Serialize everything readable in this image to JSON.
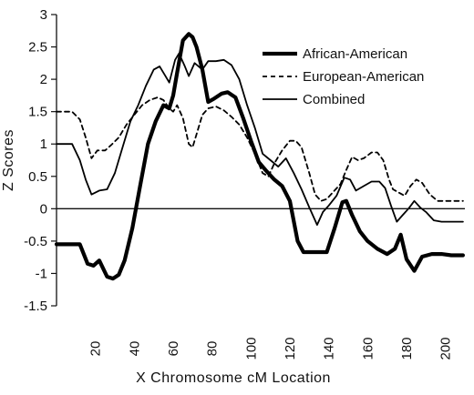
{
  "chart_data": {
    "type": "line",
    "title": "",
    "xlabel": "X Chromosome cM Location",
    "ylabel": "Z Scores",
    "xlim": [
      0,
      210
    ],
    "ylim": [
      -1.5,
      3
    ],
    "xticks": [
      20,
      40,
      60,
      80,
      100,
      120,
      140,
      160,
      180,
      200
    ],
    "yticks": [
      -1.5,
      -1,
      -0.5,
      0,
      0.5,
      1,
      1.5,
      2,
      2.5,
      3
    ],
    "legend_position": "top-right",
    "grid": false,
    "series": [
      {
        "name": "African-American",
        "style": "thick-solid",
        "color": "#000000",
        "points": [
          [
            0,
            -0.55
          ],
          [
            8,
            -0.55
          ],
          [
            12,
            -0.55
          ],
          [
            16,
            -0.85
          ],
          [
            19,
            -0.88
          ],
          [
            22,
            -0.8
          ],
          [
            26,
            -1.05
          ],
          [
            29,
            -1.08
          ],
          [
            32,
            -1.02
          ],
          [
            35,
            -0.8
          ],
          [
            39,
            -0.3
          ],
          [
            43,
            0.35
          ],
          [
            47,
            1.0
          ],
          [
            51,
            1.35
          ],
          [
            55,
            1.6
          ],
          [
            58,
            1.55
          ],
          [
            60,
            1.75
          ],
          [
            62,
            2.1
          ],
          [
            65,
            2.6
          ],
          [
            68,
            2.7
          ],
          [
            70,
            2.65
          ],
          [
            72,
            2.5
          ],
          [
            75,
            2.15
          ],
          [
            78,
            1.65
          ],
          [
            81,
            1.7
          ],
          [
            85,
            1.78
          ],
          [
            88,
            1.8
          ],
          [
            92,
            1.72
          ],
          [
            96,
            1.4
          ],
          [
            100,
            1.05
          ],
          [
            104,
            0.72
          ],
          [
            108,
            0.58
          ],
          [
            112,
            0.45
          ],
          [
            116,
            0.35
          ],
          [
            120,
            0.12
          ],
          [
            124,
            -0.5
          ],
          [
            127,
            -0.67
          ],
          [
            131,
            -0.67
          ],
          [
            135,
            -0.67
          ],
          [
            139,
            -0.67
          ],
          [
            143,
            -0.3
          ],
          [
            147,
            0.1
          ],
          [
            149,
            0.12
          ],
          [
            152,
            -0.1
          ],
          [
            156,
            -0.35
          ],
          [
            160,
            -0.5
          ],
          [
            165,
            -0.62
          ],
          [
            170,
            -0.7
          ],
          [
            174,
            -0.62
          ],
          [
            177,
            -0.4
          ],
          [
            180,
            -0.78
          ],
          [
            184,
            -0.96
          ],
          [
            188,
            -0.74
          ],
          [
            193,
            -0.7
          ],
          [
            198,
            -0.7
          ],
          [
            203,
            -0.72
          ],
          [
            209,
            -0.72
          ]
        ]
      },
      {
        "name": "European-American",
        "style": "dashed",
        "color": "#000000",
        "points": [
          [
            0,
            1.5
          ],
          [
            8,
            1.5
          ],
          [
            12,
            1.38
          ],
          [
            15,
            1.1
          ],
          [
            18,
            0.78
          ],
          [
            21,
            0.9
          ],
          [
            25,
            0.9
          ],
          [
            28,
            0.98
          ],
          [
            32,
            1.1
          ],
          [
            36,
            1.3
          ],
          [
            40,
            1.45
          ],
          [
            44,
            1.6
          ],
          [
            48,
            1.68
          ],
          [
            52,
            1.72
          ],
          [
            55,
            1.68
          ],
          [
            58,
            1.55
          ],
          [
            60,
            1.5
          ],
          [
            62,
            1.6
          ],
          [
            65,
            1.4
          ],
          [
            68,
            1.0
          ],
          [
            70,
            0.95
          ],
          [
            72,
            1.15
          ],
          [
            75,
            1.45
          ],
          [
            78,
            1.55
          ],
          [
            82,
            1.58
          ],
          [
            86,
            1.52
          ],
          [
            90,
            1.42
          ],
          [
            94,
            1.3
          ],
          [
            98,
            1.1
          ],
          [
            102,
            0.85
          ],
          [
            106,
            0.55
          ],
          [
            109,
            0.5
          ],
          [
            112,
            0.7
          ],
          [
            116,
            0.9
          ],
          [
            120,
            1.05
          ],
          [
            123,
            1.05
          ],
          [
            126,
            0.95
          ],
          [
            130,
            0.55
          ],
          [
            133,
            0.22
          ],
          [
            136,
            0.12
          ],
          [
            139,
            0.15
          ],
          [
            142,
            0.25
          ],
          [
            146,
            0.38
          ],
          [
            149,
            0.6
          ],
          [
            152,
            0.8
          ],
          [
            155,
            0.75
          ],
          [
            158,
            0.78
          ],
          [
            162,
            0.87
          ],
          [
            165,
            0.87
          ],
          [
            168,
            0.75
          ],
          [
            171,
            0.45
          ],
          [
            173,
            0.3
          ],
          [
            176,
            0.25
          ],
          [
            179,
            0.2
          ],
          [
            182,
            0.35
          ],
          [
            185,
            0.45
          ],
          [
            188,
            0.4
          ],
          [
            192,
            0.22
          ],
          [
            196,
            0.12
          ],
          [
            200,
            0.12
          ],
          [
            205,
            0.12
          ],
          [
            209,
            0.12
          ]
        ]
      },
      {
        "name": "Combined",
        "style": "thin-solid",
        "color": "#000000",
        "points": [
          [
            0,
            1.0
          ],
          [
            8,
            1.0
          ],
          [
            12,
            0.75
          ],
          [
            15,
            0.45
          ],
          [
            18,
            0.22
          ],
          [
            22,
            0.28
          ],
          [
            26,
            0.3
          ],
          [
            30,
            0.55
          ],
          [
            34,
            0.95
          ],
          [
            38,
            1.35
          ],
          [
            42,
            1.6
          ],
          [
            46,
            1.9
          ],
          [
            50,
            2.15
          ],
          [
            53,
            2.2
          ],
          [
            56,
            2.05
          ],
          [
            58,
            1.95
          ],
          [
            61,
            2.3
          ],
          [
            63,
            2.4
          ],
          [
            66,
            2.2
          ],
          [
            68,
            2.05
          ],
          [
            71,
            2.25
          ],
          [
            75,
            2.15
          ],
          [
            78,
            2.28
          ],
          [
            82,
            2.28
          ],
          [
            86,
            2.3
          ],
          [
            90,
            2.22
          ],
          [
            94,
            2.0
          ],
          [
            98,
            1.6
          ],
          [
            102,
            1.25
          ],
          [
            106,
            0.85
          ],
          [
            110,
            0.75
          ],
          [
            114,
            0.65
          ],
          [
            118,
            0.78
          ],
          [
            122,
            0.55
          ],
          [
            126,
            0.3
          ],
          [
            130,
            0.02
          ],
          [
            134,
            -0.25
          ],
          [
            137,
            -0.05
          ],
          [
            140,
            0.05
          ],
          [
            144,
            0.2
          ],
          [
            148,
            0.48
          ],
          [
            151,
            0.45
          ],
          [
            154,
            0.28
          ],
          [
            158,
            0.35
          ],
          [
            162,
            0.42
          ],
          [
            166,
            0.42
          ],
          [
            169,
            0.32
          ],
          [
            172,
            0.05
          ],
          [
            175,
            -0.2
          ],
          [
            178,
            -0.1
          ],
          [
            181,
            0.0
          ],
          [
            184,
            0.12
          ],
          [
            187,
            0.02
          ],
          [
            190,
            -0.05
          ],
          [
            194,
            -0.18
          ],
          [
            198,
            -0.2
          ],
          [
            203,
            -0.2
          ],
          [
            209,
            -0.2
          ]
        ]
      }
    ]
  }
}
